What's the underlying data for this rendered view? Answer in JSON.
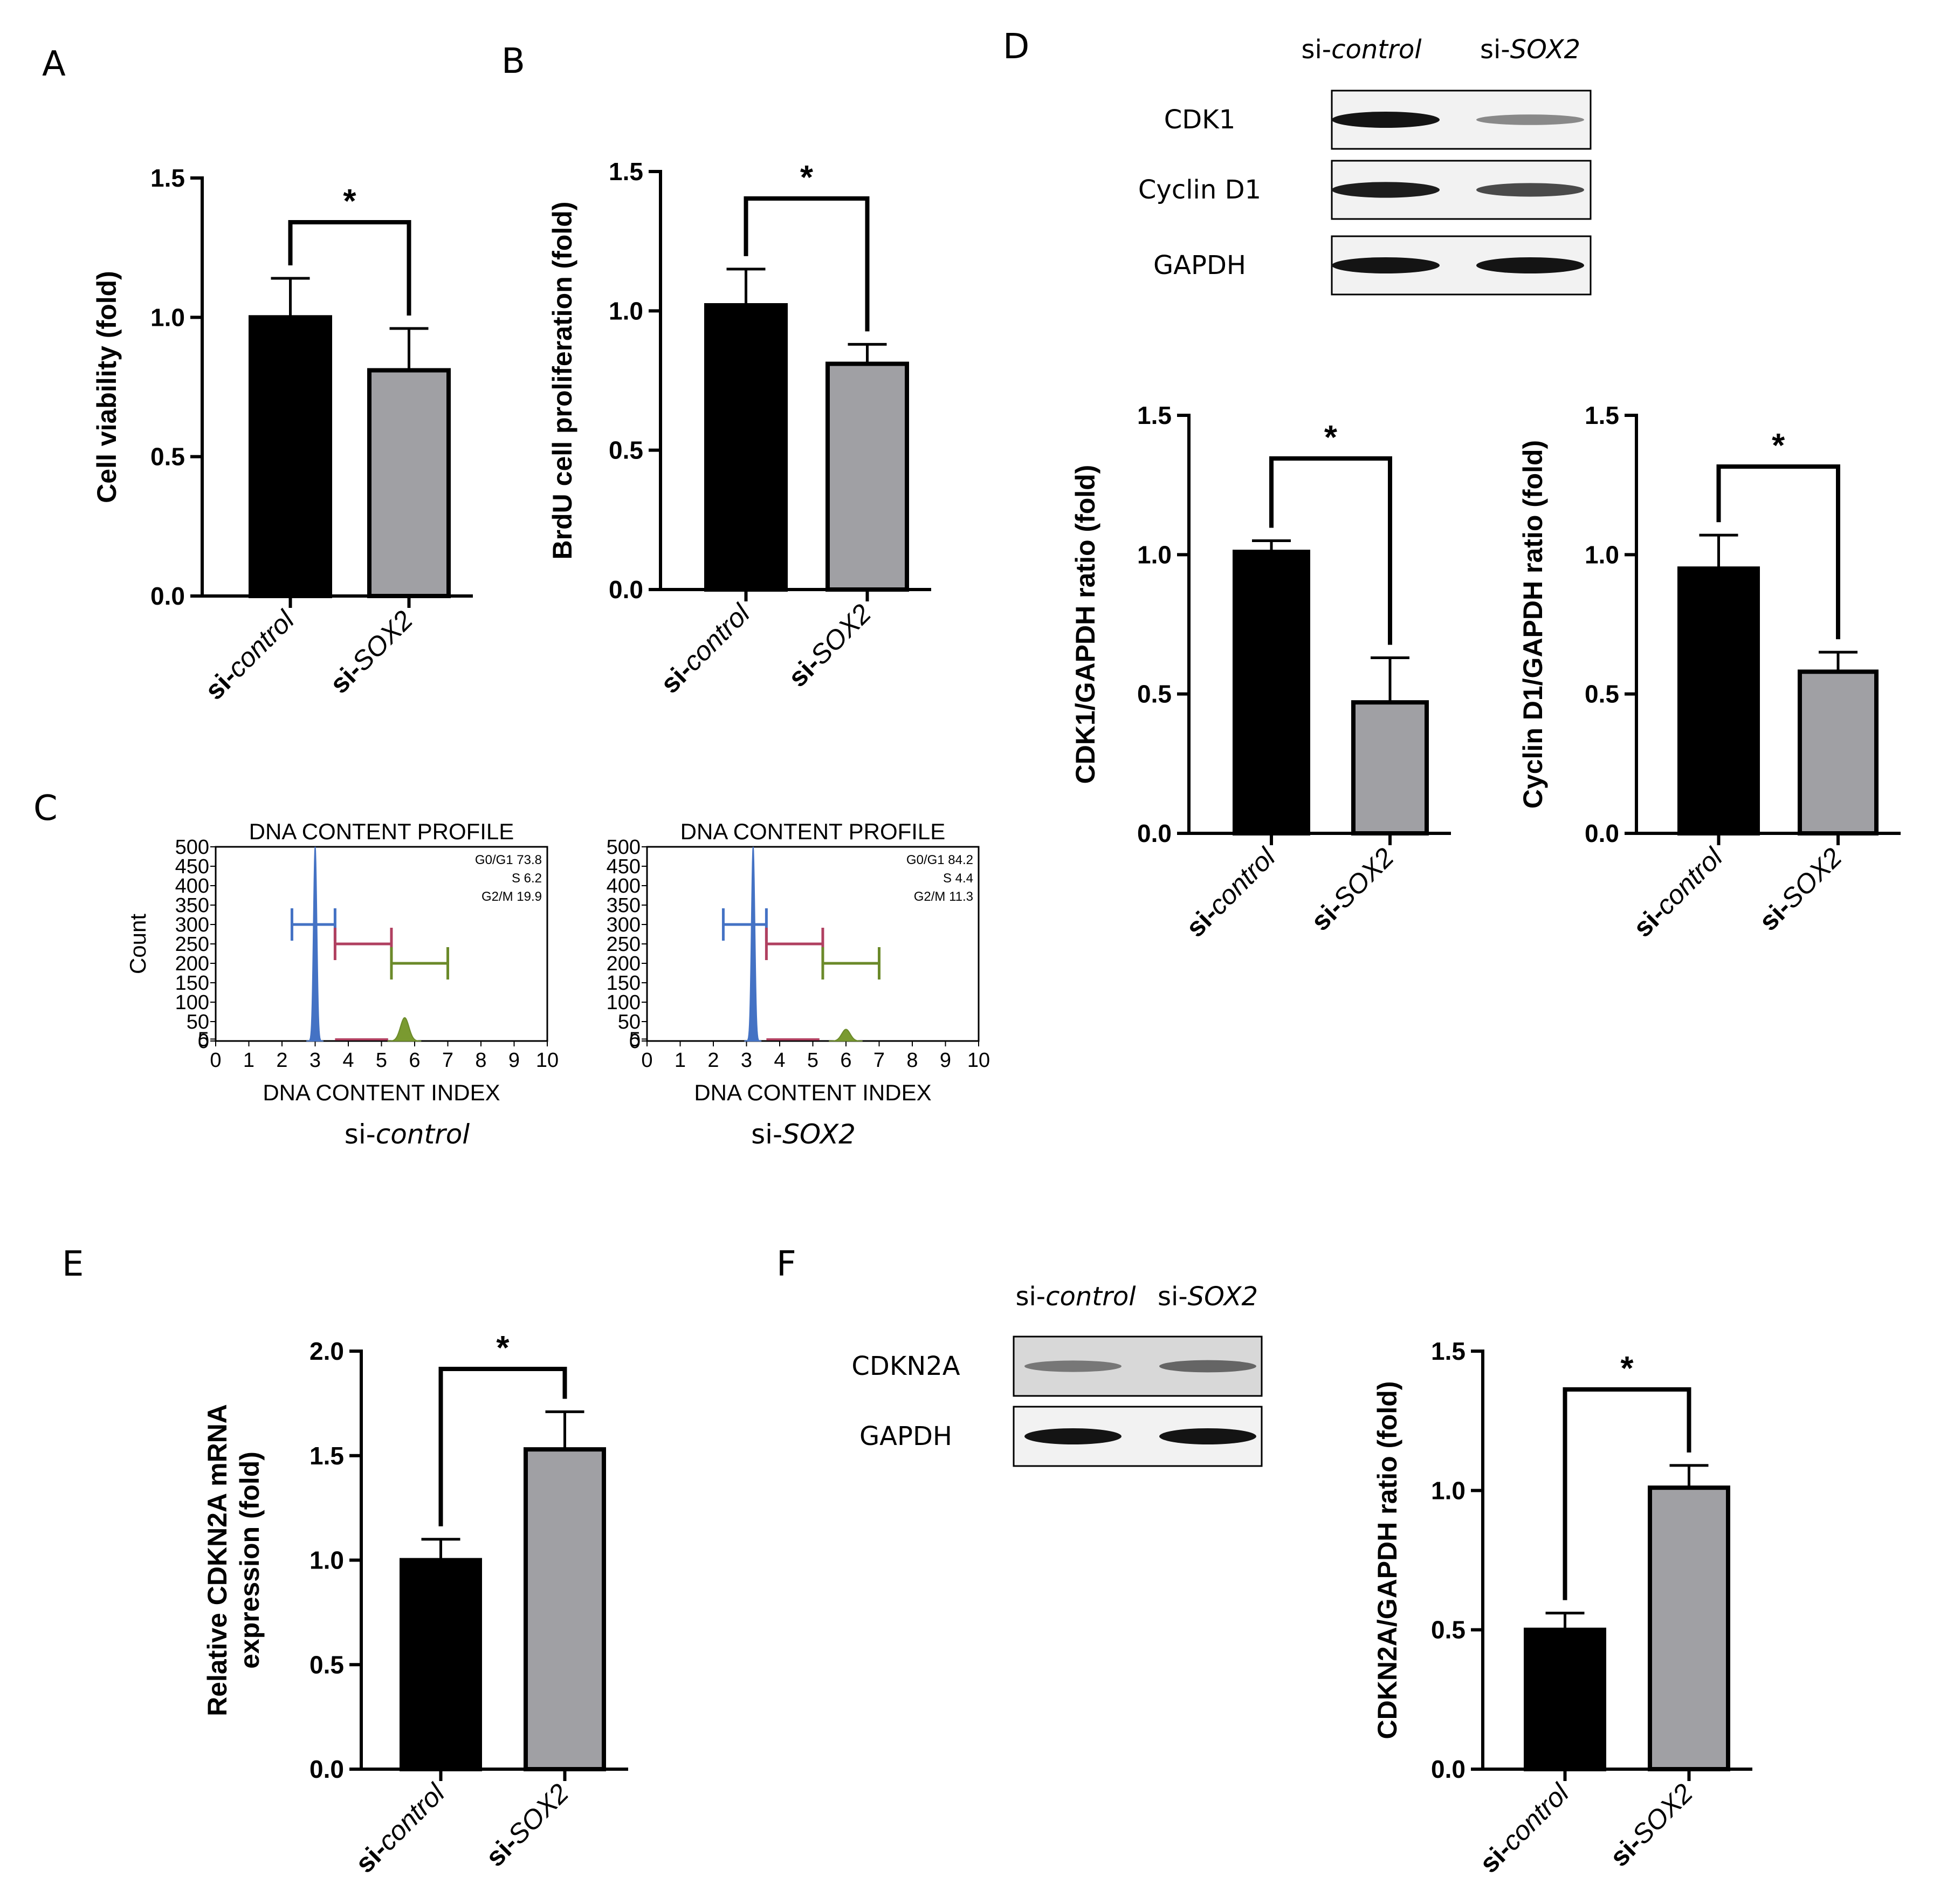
{
  "panels": {
    "A": "A",
    "B": "B",
    "C": "C",
    "D": "D",
    "E": "E",
    "F": "F"
  },
  "colors": {
    "control": "#000000",
    "sox2": "#a0a0a4",
    "err": "#000000",
    "fc_g1": "#4472c4",
    "fc_s": "#b04060",
    "fc_g2": "#6b8a2a",
    "fc_fill_g2": "#7a9a30"
  },
  "chart_data": [
    {
      "id": "A",
      "type": "bar",
      "categories": [
        "si-control",
        "si-SOX2"
      ],
      "cat_prefix": [
        "si-",
        "si-"
      ],
      "cat_italic": [
        "control",
        "SOX2"
      ],
      "values": [
        1.0,
        0.81
      ],
      "errors": [
        0.14,
        0.15
      ],
      "ylabel": "Cell viability (fold)",
      "ylim": [
        0,
        1.5
      ],
      "yticks": [
        0.0,
        0.5,
        1.0,
        1.5
      ],
      "ytick_labels": [
        "0.0",
        "0.5",
        "1.0",
        "1.5"
      ],
      "significance": "*"
    },
    {
      "id": "B",
      "type": "bar",
      "categories": [
        "si-control",
        "si-SOX2"
      ],
      "cat_prefix": [
        "si-",
        "si-"
      ],
      "cat_italic": [
        "control",
        "SOX2"
      ],
      "values": [
        1.02,
        0.81
      ],
      "errors": [
        0.13,
        0.07
      ],
      "ylabel": "BrdU cell proliferation (fold)",
      "ylim": [
        0,
        1.5
      ],
      "yticks": [
        0.0,
        0.5,
        1.0,
        1.5
      ],
      "ytick_labels": [
        "0.0",
        "0.5",
        "1.0",
        "1.5"
      ],
      "significance": "*"
    },
    {
      "id": "D1",
      "type": "bar",
      "categories": [
        "si-control",
        "si-SOX2"
      ],
      "cat_prefix": [
        "si-",
        "si-"
      ],
      "cat_italic": [
        "control",
        "SOX2"
      ],
      "values": [
        1.01,
        0.47
      ],
      "errors": [
        0.04,
        0.16
      ],
      "ylabel": "CDK1/GAPDH ratio (fold)",
      "ylim": [
        0,
        1.5
      ],
      "yticks": [
        0.0,
        0.5,
        1.0,
        1.5
      ],
      "ytick_labels": [
        "0.0",
        "0.5",
        "1.0",
        "1.5"
      ],
      "significance": "*"
    },
    {
      "id": "D2",
      "type": "bar",
      "categories": [
        "si-control",
        "si-SOX2"
      ],
      "cat_prefix": [
        "si-",
        "si-"
      ],
      "cat_italic": [
        "control",
        "SOX2"
      ],
      "values": [
        0.95,
        0.58
      ],
      "errors": [
        0.12,
        0.07
      ],
      "ylabel": "Cyclin D1/GAPDH ratio (fold)",
      "ylim": [
        0,
        1.5
      ],
      "yticks": [
        0.0,
        0.5,
        1.0,
        1.5
      ],
      "ytick_labels": [
        "0.0",
        "0.5",
        "1.0",
        "1.5"
      ],
      "significance": "*"
    },
    {
      "id": "E",
      "type": "bar",
      "categories": [
        "si-control",
        "si-SOX2"
      ],
      "cat_prefix": [
        "si-",
        "si-"
      ],
      "cat_italic": [
        "control",
        "SOX2"
      ],
      "values": [
        1.0,
        1.53
      ],
      "errors": [
        0.1,
        0.18
      ],
      "ylabel_lines": [
        "Relative CDKN2A mRNA",
        "expression (fold)"
      ],
      "ylim": [
        0,
        2.0
      ],
      "yticks": [
        0.0,
        0.5,
        1.0,
        1.5,
        2.0
      ],
      "ytick_labels": [
        "0.0",
        "0.5",
        "1.0",
        "1.5",
        "2.0"
      ],
      "significance": "*"
    },
    {
      "id": "F",
      "type": "bar",
      "categories": [
        "si-control",
        "si-SOX2"
      ],
      "cat_prefix": [
        "si-",
        "si-"
      ],
      "cat_italic": [
        "control",
        "SOX2"
      ],
      "values": [
        0.5,
        1.01
      ],
      "errors": [
        0.06,
        0.08
      ],
      "ylabel": "CDKN2A/GAPDH ratio (fold)",
      "ylim": [
        0,
        1.5
      ],
      "yticks": [
        0.0,
        0.5,
        1.0,
        1.5
      ],
      "ytick_labels": [
        "0.0",
        "0.5",
        "1.0",
        "1.5"
      ],
      "significance": "*"
    },
    {
      "id": "C1",
      "type": "histogram",
      "title": "DNA CONTENT PROFILE",
      "xlabel": "DNA CONTENT INDEX",
      "ylabel": "Count",
      "caption_prefix": "si-",
      "caption_italic": "control",
      "xlim": [
        0,
        10
      ],
      "ylim": [
        0,
        500
      ],
      "xticks": [
        "0",
        "1",
        "2",
        "3",
        "4",
        "5",
        "6",
        "7",
        "8",
        "9",
        "10"
      ],
      "yticks": [
        "0",
        "5",
        "50",
        "100",
        "150",
        "200",
        "250",
        "300",
        "350",
        "400",
        "450",
        "500"
      ],
      "stats": [
        "G0/G1 73.8",
        "S 6.2",
        "G2/M 19.9"
      ],
      "g1_peak": 3.0,
      "g1_height": 500,
      "g2_peak": 5.7,
      "g2_height": 60,
      "gates": {
        "g1": [
          2.3,
          3.6
        ],
        "s": [
          3.6,
          5.3
        ],
        "g2m": [
          5.3,
          7.0
        ]
      }
    },
    {
      "id": "C2",
      "type": "histogram",
      "title": "DNA CONTENT PROFILE",
      "xlabel": "DNA CONTENT INDEX",
      "ylabel": "",
      "caption_prefix": "si-",
      "caption_italic": "SOX2",
      "xlim": [
        0,
        10
      ],
      "ylim": [
        0,
        500
      ],
      "xticks": [
        "0",
        "1",
        "2",
        "3",
        "4",
        "5",
        "6",
        "7",
        "8",
        "9",
        "10"
      ],
      "yticks": [
        "0",
        "5",
        "50",
        "100",
        "150",
        "200",
        "250",
        "300",
        "350",
        "400",
        "450",
        "500"
      ],
      "stats": [
        "G0/G1 84.2",
        "S 4.4",
        "G2/M 11.3"
      ],
      "g1_peak": 3.2,
      "g1_height": 500,
      "g2_peak": 6.0,
      "g2_height": 30,
      "gates": {
        "g1": [
          2.3,
          3.6
        ],
        "s": [
          3.6,
          5.3
        ],
        "g2m": [
          5.3,
          7.0
        ]
      }
    }
  ],
  "blots": {
    "D": {
      "lanes": [
        {
          "prefix": "si-",
          "italic": "control"
        },
        {
          "prefix": "si-",
          "italic": "SOX2"
        }
      ],
      "rows": [
        {
          "label": "CDK1",
          "intensity": [
            1.0,
            0.35
          ]
        },
        {
          "label": "Cyclin D1",
          "intensity": [
            0.95,
            0.7
          ]
        },
        {
          "label": "GAPDH",
          "intensity": [
            1.0,
            1.0
          ]
        }
      ]
    },
    "F": {
      "lanes": [
        {
          "prefix": "si-",
          "italic": "control"
        },
        {
          "prefix": "si-",
          "italic": "SOX2"
        }
      ],
      "rows": [
        {
          "label": "CDKN2A",
          "intensity": [
            0.45,
            0.55
          ]
        },
        {
          "label": "GAPDH",
          "intensity": [
            1.0,
            1.0
          ]
        }
      ]
    }
  }
}
